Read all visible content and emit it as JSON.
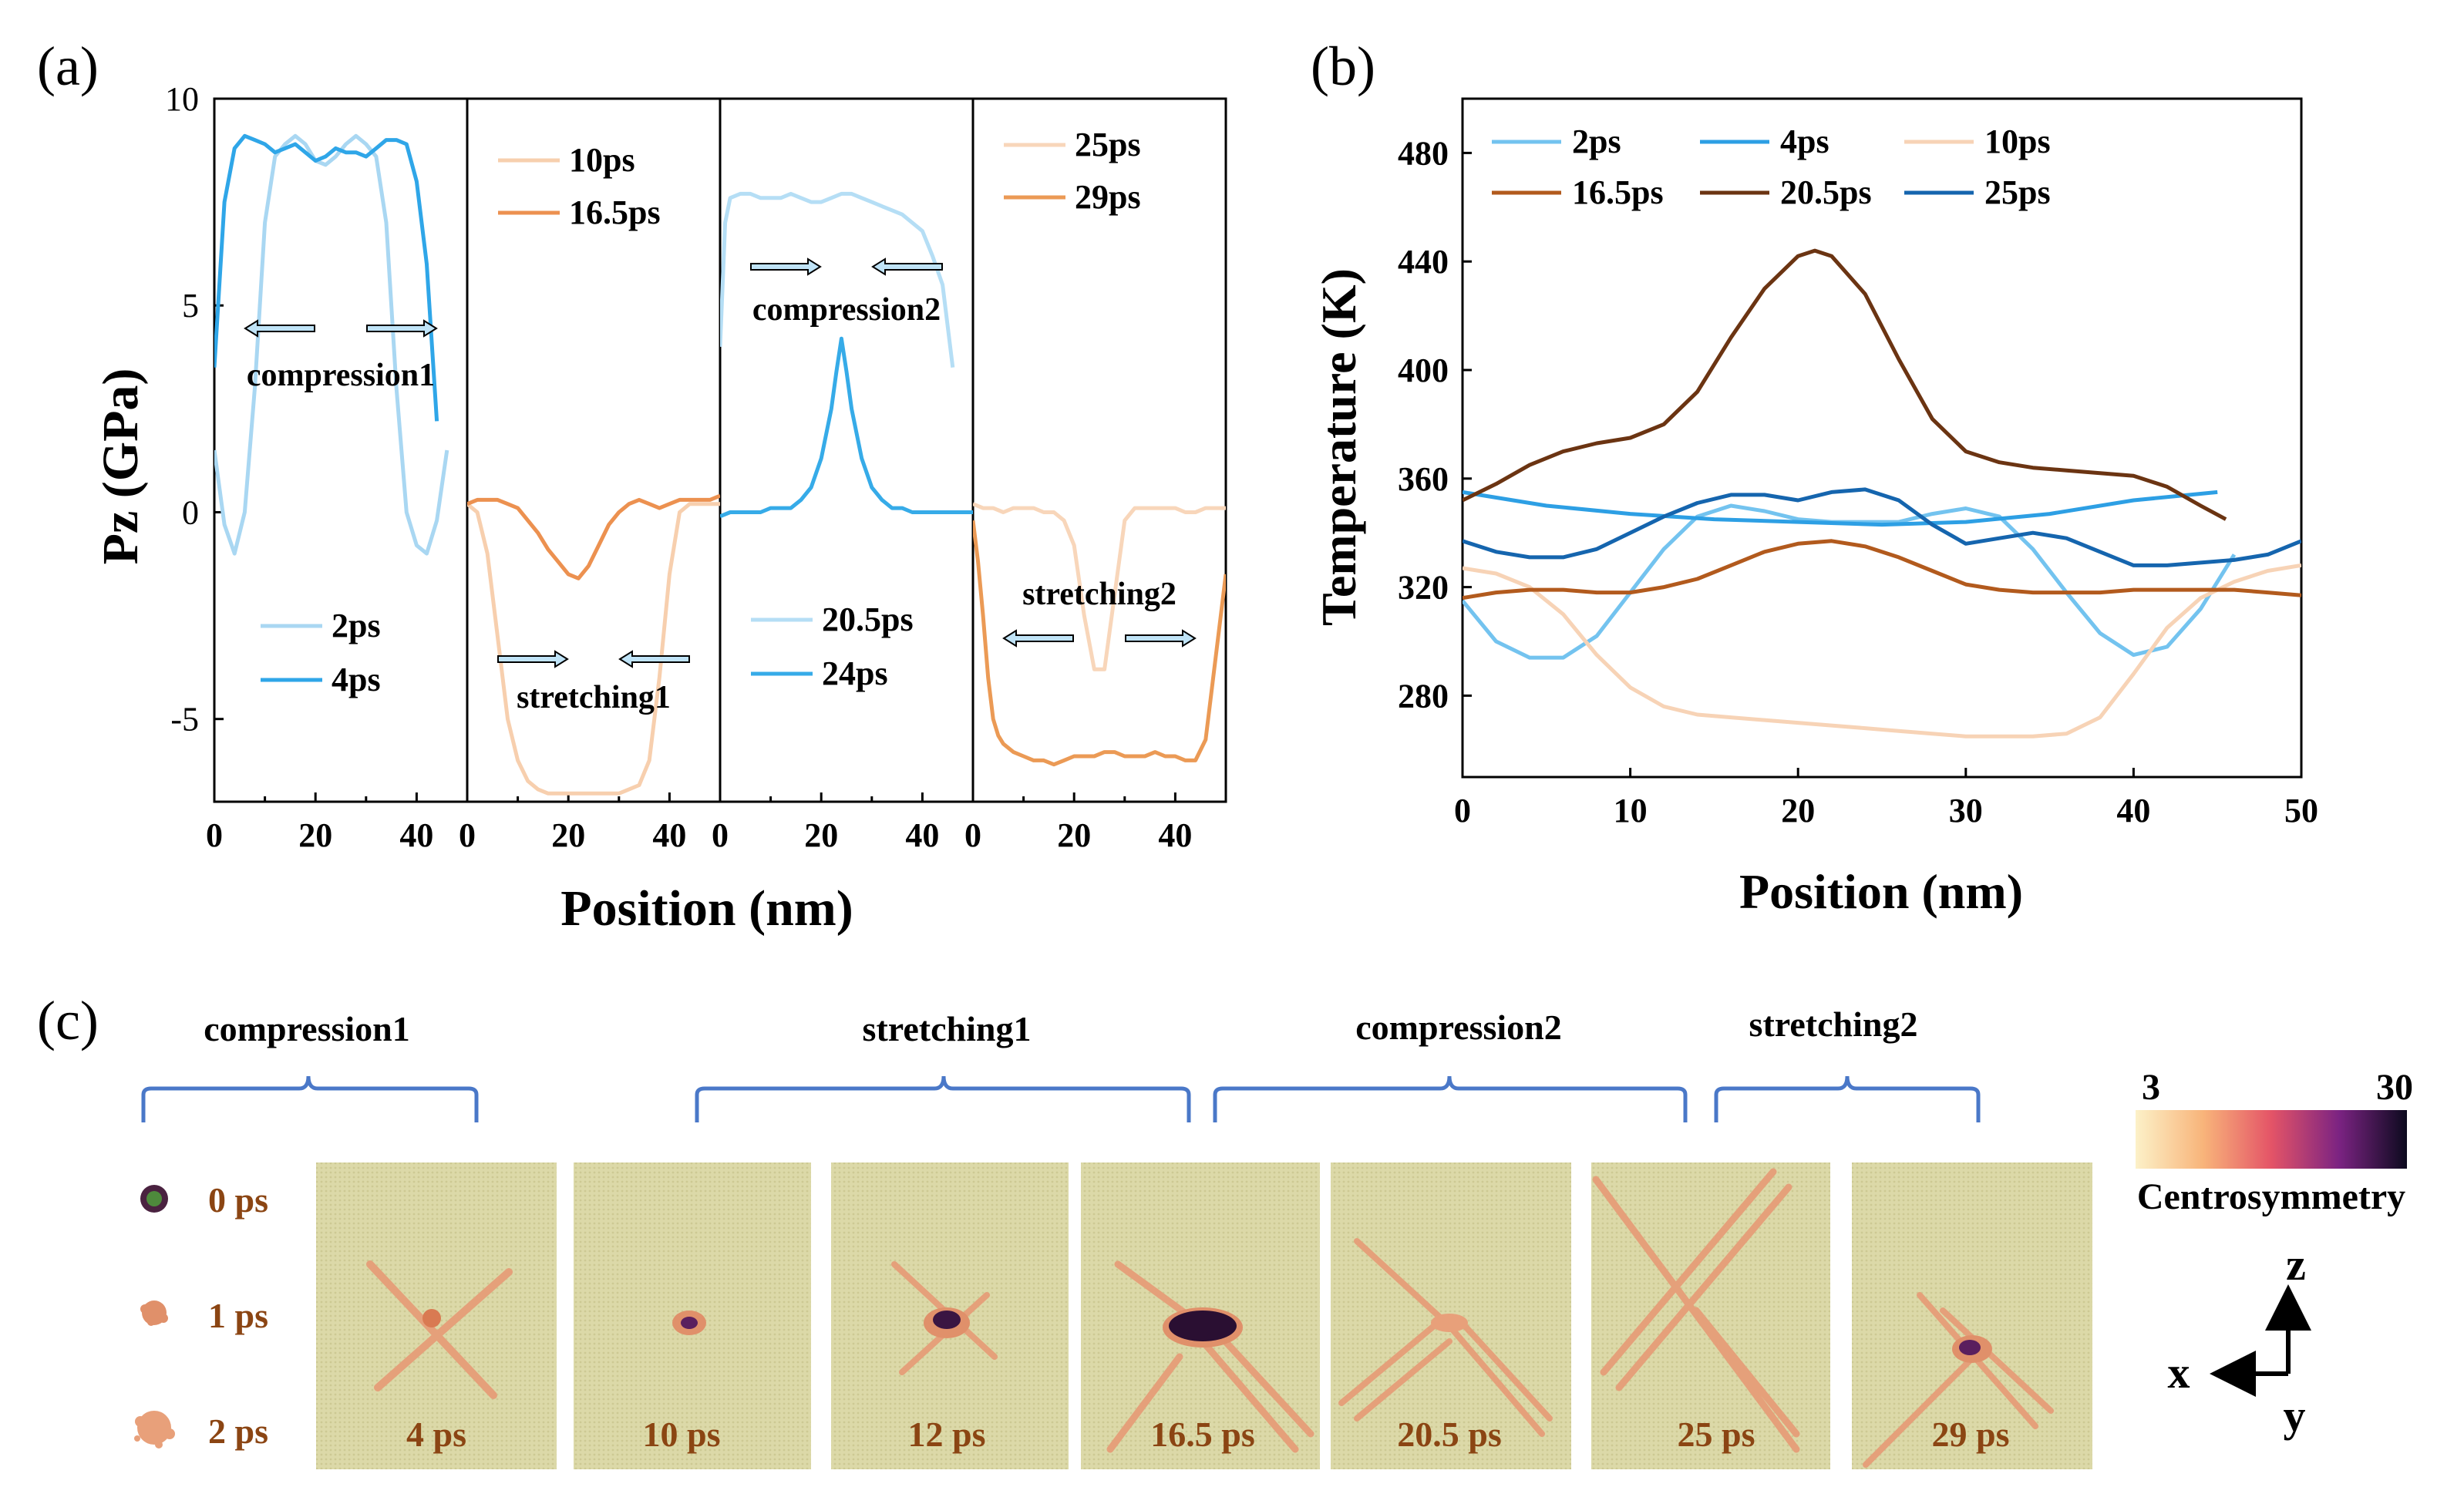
{
  "panel_labels": {
    "a": "(a)",
    "b": "(b)",
    "c": "(c)"
  },
  "colors": {
    "c2ps": "#a9d7f2",
    "c4ps": "#2fa6e8",
    "c10ps": "#f7cfae",
    "c16_5ps": "#ec9150",
    "c20_5ps_a": "#b5def5",
    "c24ps": "#36abe8",
    "c25ps_a": "#f8d6ba",
    "c29ps": "#eb9a55",
    "b2ps": "#73c3ef",
    "b4ps": "#2d9fe4",
    "b10ps": "#f7d3b6",
    "b16_5ps": "#b25a1d",
    "b20_5ps": "#6b3412",
    "b25ps": "#1565ae"
  },
  "chart_data": [
    {
      "type": "line",
      "id": "a",
      "ylabel": "Pz (GPa)",
      "xlabel": "Position (nm)",
      "ylim": [
        -7,
        10
      ],
      "yticks": [
        "10",
        "5",
        "0",
        "-5"
      ],
      "yticks_values": [
        10,
        5,
        0,
        -5
      ],
      "subplots": [
        {
          "xlim": [
            0,
            50
          ],
          "xticks": [
            "0",
            "20",
            "40"
          ],
          "annotation": "compression1",
          "arrows": "outward",
          "series": [
            {
              "name": "2ps",
              "color": "c2ps",
              "x": [
                0,
                2,
                4,
                6,
                8,
                10,
                12,
                14,
                16,
                18,
                20,
                22,
                24,
                26,
                28,
                30,
                32,
                34,
                36,
                38,
                40,
                42,
                44,
                46
              ],
              "y": [
                1.5,
                -0.3,
                -1.0,
                0.0,
                3.0,
                7.0,
                8.6,
                8.9,
                9.1,
                8.9,
                8.5,
                8.4,
                8.6,
                8.9,
                9.1,
                8.9,
                8.6,
                7.0,
                3.0,
                0.0,
                -0.8,
                -1.0,
                -0.2,
                1.5
              ]
            },
            {
              "name": "4ps",
              "color": "c4ps",
              "x": [
                0,
                2,
                4,
                6,
                8,
                10,
                12,
                14,
                16,
                18,
                20,
                22,
                24,
                26,
                28,
                30,
                32,
                34,
                36,
                38,
                40,
                42,
                44
              ],
              "y": [
                3.5,
                7.5,
                8.8,
                9.1,
                9.0,
                8.9,
                8.7,
                8.8,
                8.9,
                8.7,
                8.5,
                8.6,
                8.8,
                8.7,
                8.7,
                8.6,
                8.8,
                9.0,
                9.0,
                8.9,
                8.0,
                6.0,
                2.2
              ]
            }
          ],
          "legend": [
            "2ps",
            "4ps"
          ]
        },
        {
          "xlim": [
            0,
            50
          ],
          "xticks": [
            "0",
            "20",
            "40"
          ],
          "annotation": "stretching1",
          "arrows": "inward",
          "series": [
            {
              "name": "10ps",
              "color": "c10ps",
              "x": [
                0,
                2,
                4,
                6,
                8,
                10,
                12,
                14,
                16,
                18,
                20,
                22,
                24,
                26,
                28,
                30,
                32,
                34,
                36,
                38,
                40,
                42,
                44,
                46,
                48,
                50
              ],
              "y": [
                0.2,
                0.0,
                -1.0,
                -3.0,
                -5.0,
                -6.0,
                -6.5,
                -6.7,
                -6.8,
                -6.8,
                -6.8,
                -6.8,
                -6.8,
                -6.8,
                -6.8,
                -6.8,
                -6.7,
                -6.6,
                -6.0,
                -4.0,
                -1.5,
                0.0,
                0.2,
                0.2,
                0.2,
                0.2
              ]
            },
            {
              "name": "16.5ps",
              "color": "c16_5ps",
              "x": [
                0,
                2,
                4,
                6,
                8,
                10,
                12,
                14,
                16,
                18,
                20,
                22,
                24,
                26,
                28,
                30,
                32,
                34,
                36,
                38,
                40,
                42,
                44,
                46,
                48,
                50
              ],
              "y": [
                0.2,
                0.3,
                0.3,
                0.3,
                0.2,
                0.1,
                -0.2,
                -0.5,
                -0.9,
                -1.2,
                -1.5,
                -1.6,
                -1.3,
                -0.8,
                -0.3,
                0.0,
                0.2,
                0.3,
                0.2,
                0.1,
                0.2,
                0.3,
                0.3,
                0.3,
                0.3,
                0.4
              ]
            }
          ],
          "legend": [
            "10ps",
            "16.5ps"
          ]
        },
        {
          "xlim": [
            0,
            50
          ],
          "xticks": [
            "0",
            "20",
            "40"
          ],
          "annotation": "compression2",
          "arrows": "inward",
          "series": [
            {
              "name": "20.5ps",
              "color": "c20_5ps_a",
              "x": [
                0,
                1,
                2,
                4,
                6,
                8,
                10,
                12,
                14,
                16,
                18,
                20,
                22,
                24,
                26,
                28,
                30,
                32,
                34,
                36,
                38,
                40,
                42,
                44,
                46
              ],
              "y": [
                4.0,
                7.0,
                7.6,
                7.7,
                7.7,
                7.6,
                7.6,
                7.6,
                7.7,
                7.6,
                7.5,
                7.5,
                7.6,
                7.7,
                7.7,
                7.6,
                7.5,
                7.4,
                7.3,
                7.2,
                7.0,
                6.8,
                6.2,
                5.5,
                3.5
              ]
            },
            {
              "name": "24ps",
              "color": "c24ps",
              "x": [
                0,
                2,
                4,
                6,
                8,
                10,
                12,
                14,
                16,
                18,
                20,
                22,
                23,
                24,
                25,
                26,
                28,
                30,
                32,
                34,
                36,
                38,
                40,
                42,
                44,
                46,
                48,
                50
              ],
              "y": [
                -0.1,
                0.0,
                0.0,
                0.0,
                0.0,
                0.1,
                0.1,
                0.1,
                0.3,
                0.6,
                1.3,
                2.5,
                3.4,
                4.2,
                3.4,
                2.5,
                1.3,
                0.6,
                0.3,
                0.1,
                0.1,
                0.0,
                0.0,
                0.0,
                0.0,
                0.0,
                0.0,
                0.0
              ]
            }
          ],
          "legend": [
            "20.5ps",
            "24ps"
          ]
        },
        {
          "xlim": [
            0,
            50
          ],
          "xticks": [
            "0",
            "20",
            "40"
          ],
          "annotation": "stretching2",
          "arrows": "outward",
          "series": [
            {
              "name": "25ps",
              "color": "c25ps_a",
              "x": [
                0,
                2,
                4,
                6,
                8,
                10,
                12,
                14,
                16,
                18,
                20,
                22,
                24,
                26,
                28,
                30,
                32,
                34,
                36,
                38,
                40,
                42,
                44,
                46,
                48,
                50
              ],
              "y": [
                0.2,
                0.1,
                0.1,
                0.0,
                0.1,
                0.1,
                0.1,
                0.0,
                0.0,
                -0.2,
                -0.8,
                -2.5,
                -3.8,
                -3.8,
                -2.0,
                -0.2,
                0.1,
                0.1,
                0.1,
                0.1,
                0.1,
                0.0,
                0.0,
                0.1,
                0.1,
                0.1
              ]
            },
            {
              "name": "29ps",
              "color": "c29ps",
              "x": [
                0,
                1,
                2,
                3,
                4,
                5,
                6,
                8,
                10,
                12,
                14,
                16,
                18,
                20,
                22,
                24,
                26,
                28,
                30,
                32,
                34,
                36,
                38,
                40,
                42,
                44,
                46,
                48,
                50
              ],
              "y": [
                -0.2,
                -1.2,
                -2.5,
                -4.0,
                -5.0,
                -5.4,
                -5.6,
                -5.8,
                -5.9,
                -6.0,
                -6.0,
                -6.1,
                -6.0,
                -5.9,
                -5.9,
                -5.9,
                -5.8,
                -5.8,
                -5.9,
                -5.9,
                -5.9,
                -5.8,
                -5.9,
                -5.9,
                -6.0,
                -6.0,
                -5.5,
                -3.5,
                -1.5
              ]
            }
          ],
          "legend": [
            "25ps",
            "29ps"
          ]
        }
      ]
    },
    {
      "type": "line",
      "id": "b",
      "ylabel": "Temperature (K)",
      "xlabel": "Position (nm)",
      "xlim": [
        0,
        50
      ],
      "ylim": [
        250,
        500
      ],
      "xticks": [
        "0",
        "10",
        "20",
        "30",
        "40",
        "50"
      ],
      "xticks_values": [
        0,
        10,
        20,
        30,
        40,
        50
      ],
      "yticks": [
        "280",
        "320",
        "360",
        "400",
        "440",
        "480"
      ],
      "yticks_values": [
        280,
        320,
        360,
        400,
        440,
        480
      ],
      "legend": [
        "2ps",
        "4ps",
        "10ps",
        "16.5ps",
        "20.5ps",
        "25ps"
      ],
      "series": [
        {
          "name": "2ps",
          "color": "b2ps",
          "x": [
            0,
            2,
            4,
            6,
            8,
            10,
            12,
            14,
            16,
            18,
            20,
            22,
            24,
            26,
            28,
            30,
            32,
            34,
            36,
            38,
            40,
            42,
            44,
            46
          ],
          "y": [
            315,
            300,
            294,
            294,
            302,
            318,
            334,
            346,
            350,
            348,
            345,
            344,
            344,
            344,
            347,
            349,
            346,
            334,
            318,
            303,
            295,
            298,
            312,
            332
          ]
        },
        {
          "name": "4ps",
          "color": "b4ps",
          "x": [
            0,
            5,
            10,
            15,
            20,
            25,
            30,
            35,
            40,
            45
          ],
          "y": [
            355,
            350,
            347,
            345,
            344,
            343,
            344,
            347,
            352,
            355
          ]
        },
        {
          "name": "10ps",
          "color": "b10ps",
          "x": [
            0,
            2,
            4,
            6,
            8,
            10,
            12,
            14,
            16,
            18,
            20,
            22,
            24,
            26,
            28,
            30,
            32,
            34,
            36,
            38,
            40,
            42,
            44,
            46,
            48,
            50
          ],
          "y": [
            327,
            325,
            320,
            310,
            295,
            283,
            276,
            273,
            272,
            271,
            270,
            269,
            268,
            267,
            266,
            265,
            265,
            265,
            266,
            272,
            288,
            305,
            316,
            322,
            326,
            328
          ]
        },
        {
          "name": "16.5ps",
          "color": "b16_5ps",
          "x": [
            0,
            2,
            4,
            6,
            8,
            10,
            12,
            14,
            16,
            18,
            20,
            22,
            24,
            26,
            28,
            30,
            32,
            34,
            36,
            38,
            40,
            42,
            44,
            46,
            48,
            50
          ],
          "y": [
            316,
            318,
            319,
            319,
            318,
            318,
            320,
            323,
            328,
            333,
            336,
            337,
            335,
            331,
            326,
            321,
            319,
            318,
            318,
            318,
            319,
            319,
            319,
            319,
            318,
            317
          ]
        },
        {
          "name": "20.5ps",
          "color": "b20_5ps",
          "x": [
            0,
            2,
            4,
            6,
            8,
            10,
            12,
            14,
            16,
            18,
            20,
            21,
            22,
            24,
            26,
            28,
            30,
            32,
            34,
            36,
            38,
            40,
            42,
            44,
            45.5
          ],
          "y": [
            352,
            358,
            365,
            370,
            373,
            375,
            380,
            392,
            412,
            430,
            442,
            444,
            442,
            428,
            404,
            382,
            370,
            366,
            364,
            363,
            362,
            361,
            357,
            350,
            345
          ]
        },
        {
          "name": "25ps",
          "color": "b25ps",
          "x": [
            0,
            2,
            4,
            6,
            8,
            10,
            12,
            14,
            16,
            18,
            20,
            22,
            24,
            26,
            28,
            30,
            32,
            34,
            36,
            38,
            40,
            42,
            44,
            46,
            48,
            50
          ],
          "y": [
            337,
            333,
            331,
            331,
            334,
            340,
            346,
            351,
            354,
            354,
            352,
            355,
            356,
            352,
            343,
            336,
            338,
            340,
            338,
            333,
            328,
            328,
            329,
            330,
            332,
            337
          ]
        }
      ]
    }
  ],
  "panel_c": {
    "stage_labels": [
      "compression1",
      "stretching1",
      "compression2",
      "stretching2"
    ],
    "initial_labels": [
      "0 ps",
      "1 ps",
      "2 ps"
    ],
    "snapshot_labels": [
      "4 ps",
      "10 ps",
      "12 ps",
      "16.5 ps",
      "20.5 ps",
      "25 ps",
      "29 ps"
    ],
    "colorbar": {
      "min": "3",
      "max": "30",
      "label": "Centrosymmetry"
    },
    "axes": {
      "x": "x",
      "y": "y",
      "z": "z"
    }
  }
}
